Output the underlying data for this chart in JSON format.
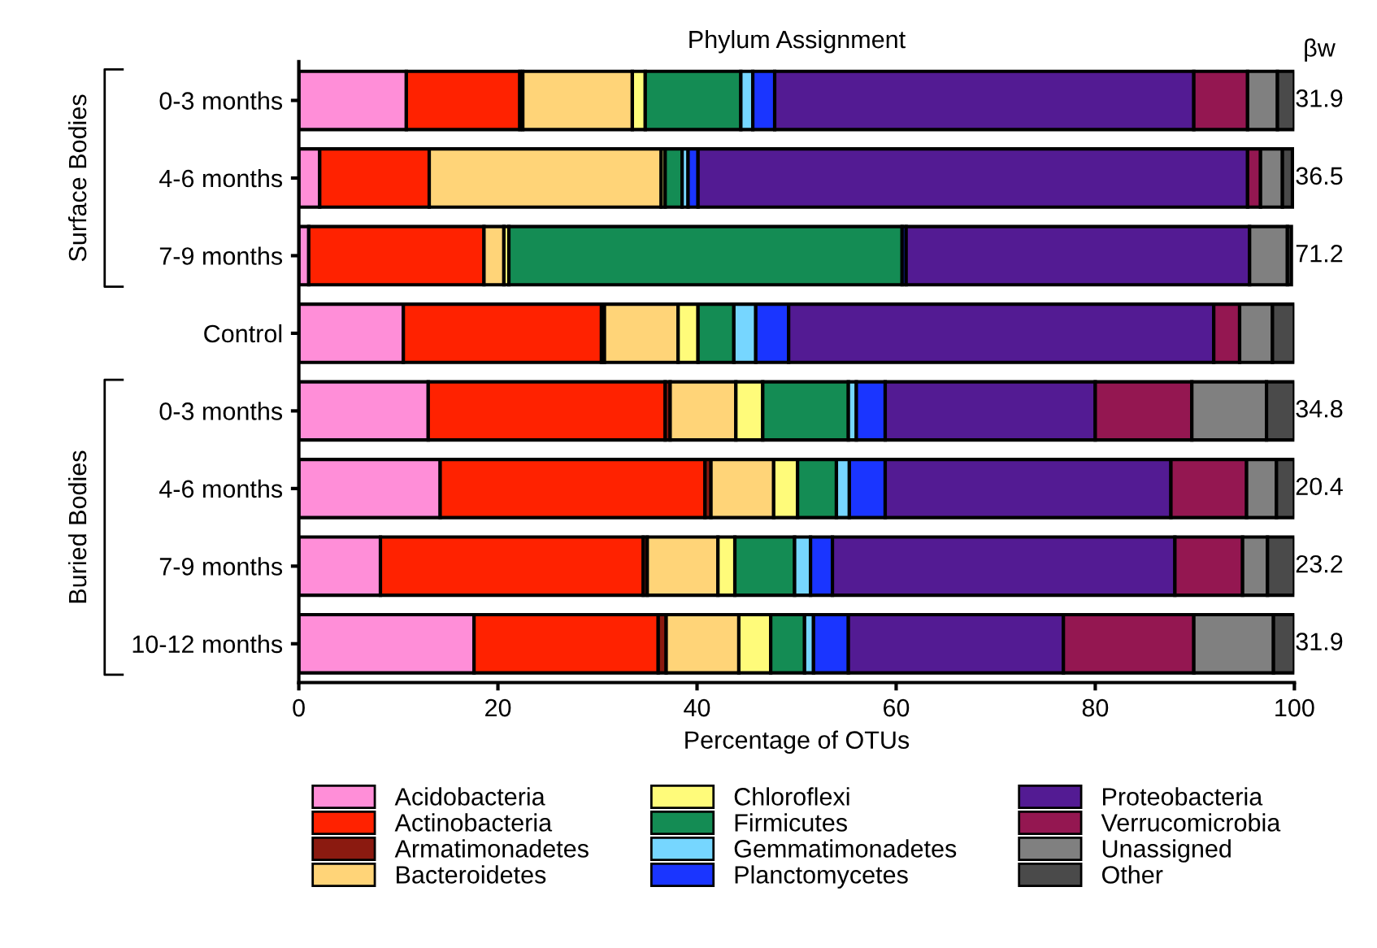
{
  "chart_data": {
    "type": "bar",
    "orientation": "horizontal",
    "stacked": true,
    "title": "Phylum Assignment",
    "xlabel": "Percentage of OTUs",
    "categories": [
      "0-3 months",
      "4-6 months",
      "7-9 months",
      "Control",
      "0-3 months",
      "4-6 months",
      "7-9 months",
      "10-12 months"
    ],
    "series": [
      {
        "name": "Acidobacteria",
        "color": "#ff8ed8",
        "values": [
          10.8,
          2.1,
          1.0,
          10.5,
          13.0,
          14.2,
          8.2,
          17.6
        ]
      },
      {
        "name": "Actinobacteria",
        "color": "#ff2200",
        "values": [
          11.4,
          11.0,
          17.6,
          19.9,
          23.8,
          26.6,
          26.4,
          18.5
        ]
      },
      {
        "name": "Armatimonadetes",
        "color": "#8b1a10",
        "values": [
          0.3,
          null,
          0,
          0.3,
          0.5,
          0.6,
          0.4,
          0.8
        ]
      },
      {
        "name": "Bacteroidetes",
        "color": "#ffd478",
        "values": [
          11.0,
          23.3,
          2.0,
          7.4,
          6.6,
          6.3,
          7.1,
          7.3
        ]
      },
      {
        "name": "Chloroflexi",
        "color": "#fffb7a",
        "values": [
          1.3,
          0.4,
          0.5,
          2.0,
          2.7,
          2.4,
          1.7,
          3.2
        ]
      },
      {
        "name": "Firmicutes",
        "color": "#148c54",
        "values": [
          9.6,
          1.7,
          39.5,
          3.6,
          8.6,
          3.9,
          6.0,
          3.4
        ]
      },
      {
        "name": "Gemmatimonadetes",
        "color": "#76d6ff",
        "values": [
          1.2,
          0.6,
          null,
          2.2,
          0.8,
          1.3,
          1.6,
          0.9
        ]
      },
      {
        "name": "Planctomycetes",
        "color": "#1a35ff",
        "values": [
          2.2,
          1.0,
          0.4,
          3.3,
          2.9,
          3.6,
          2.2,
          3.5
        ]
      },
      {
        "name": "Proteobacteria",
        "color": "#531b93",
        "values": [
          42.1,
          55.2,
          34.5,
          42.7,
          21.1,
          28.7,
          34.4,
          21.6
        ]
      },
      {
        "name": "Verrucomicrobia",
        "color": "#941751",
        "values": [
          5.4,
          1.3,
          0,
          2.6,
          9.7,
          7.6,
          6.8,
          13.1
        ]
      },
      {
        "name": "Unassigned",
        "color": "#808080",
        "values": [
          3.0,
          2.2,
          3.8,
          3.3,
          7.5,
          3.0,
          2.5,
          8.0
        ]
      },
      {
        "name": "Other",
        "color": "#4a4a4a",
        "values": [
          1.7,
          1.0,
          0.4,
          2.2,
          2.8,
          1.8,
          2.7,
          2.1
        ]
      }
    ],
    "xlim": [
      0,
      100
    ],
    "xticks": [
      0,
      20,
      40,
      60,
      80,
      100
    ],
    "grid": false,
    "legend": "bottom",
    "annotations": [
      "βw",
      "31.9",
      "36.5",
      "71.2",
      null,
      "34.8",
      "20.4",
      "23.2",
      "31.9",
      "Surface Bodies",
      "Buried Bodies"
    ]
  }
}
